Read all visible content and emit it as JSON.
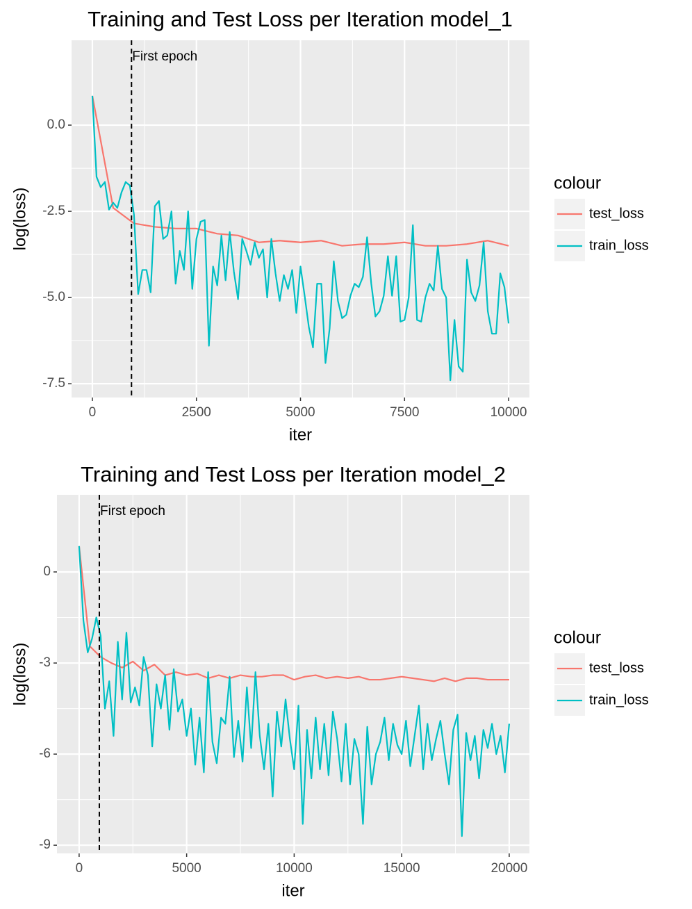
{
  "chart_data": [
    {
      "type": "line",
      "title": "Training and Test Loss per Iteration model_1",
      "x_label": "iter",
      "y_label": "log(loss)",
      "xlim": [
        -500,
        10500
      ],
      "ylim": [
        -7.9,
        2.46
      ],
      "xticks": [
        0,
        2500,
        5000,
        7500,
        10000
      ],
      "yticks": [
        -7.5,
        {
          "value": -5,
          "label": "-5.0"
        },
        -2.5,
        {
          "value": 0,
          "label": "0.0"
        }
      ],
      "grid": true,
      "minor_grid": true,
      "legend_title": "colour",
      "legend_position": "right",
      "annotation": {
        "x": 940,
        "text": "First epoch"
      },
      "series": [
        {
          "name": "test_loss",
          "color": "#F8766D",
          "x": [
            0,
            500,
            1000,
            1500,
            2000,
            2500,
            3000,
            3500,
            4000,
            4500,
            5000,
            5500,
            6000,
            6500,
            7000,
            7500,
            8000,
            8500,
            9000,
            9500,
            10000
          ],
          "values": [
            0.85,
            -2.4,
            -2.85,
            -2.95,
            -3.0,
            -3.0,
            -3.15,
            -3.2,
            -3.4,
            -3.35,
            -3.4,
            -3.35,
            -3.5,
            -3.45,
            -3.45,
            -3.4,
            -3.5,
            -3.5,
            -3.45,
            -3.35,
            -3.5
          ]
        },
        {
          "name": "train_loss",
          "color": "#00BFC4",
          "x": [
            0,
            100,
            200,
            300,
            400,
            500,
            600,
            700,
            800,
            900,
            1000,
            1100,
            1200,
            1300,
            1400,
            1500,
            1600,
            1700,
            1800,
            1900,
            2000,
            2100,
            2200,
            2300,
            2400,
            2500,
            2600,
            2700,
            2800,
            2900,
            3000,
            3100,
            3200,
            3300,
            3400,
            3500,
            3600,
            3700,
            3800,
            3900,
            4000,
            4100,
            4200,
            4300,
            4400,
            4500,
            4600,
            4700,
            4800,
            4900,
            5000,
            5100,
            5200,
            5300,
            5400,
            5500,
            5600,
            5700,
            5800,
            5900,
            6000,
            6100,
            6200,
            6300,
            6400,
            6500,
            6600,
            6700,
            6800,
            6900,
            7000,
            7100,
            7200,
            7300,
            7400,
            7500,
            7600,
            7700,
            7800,
            7900,
            8000,
            8100,
            8200,
            8300,
            8400,
            8500,
            8600,
            8700,
            8800,
            8900,
            9000,
            9100,
            9200,
            9300,
            9400,
            9500,
            9600,
            9700,
            9800,
            9900,
            10000
          ],
          "values": [
            0.85,
            -1.5,
            -1.8,
            -1.65,
            -2.45,
            -2.25,
            -2.4,
            -1.95,
            -1.65,
            -1.75,
            -2.6,
            -4.9,
            -4.2,
            -4.2,
            -4.85,
            -2.35,
            -2.2,
            -3.3,
            -3.2,
            -2.5,
            -4.6,
            -3.65,
            -4.2,
            -2.5,
            -4.75,
            -3.3,
            -2.8,
            -2.75,
            -6.4,
            -4.1,
            -4.65,
            -3.2,
            -4.5,
            -3.1,
            -4.25,
            -5.05,
            -3.3,
            -3.65,
            -4.05,
            -3.4,
            -3.85,
            -3.6,
            -5.0,
            -3.3,
            -4.3,
            -5.1,
            -4.35,
            -4.75,
            -4.2,
            -5.45,
            -4.1,
            -4.95,
            -5.85,
            -6.45,
            -4.6,
            -4.6,
            -6.9,
            -5.9,
            -3.95,
            -5.1,
            -5.6,
            -5.5,
            -4.95,
            -4.6,
            -4.7,
            -4.4,
            -3.25,
            -4.6,
            -5.55,
            -5.4,
            -4.95,
            -3.8,
            -4.95,
            -3.8,
            -5.7,
            -5.65,
            -5.0,
            -2.9,
            -5.65,
            -5.7,
            -5.0,
            -4.6,
            -4.8,
            -3.5,
            -4.75,
            -5.0,
            -7.4,
            -5.65,
            -7.0,
            -7.15,
            -3.9,
            -4.85,
            -5.1,
            -4.65,
            -3.4,
            -5.4,
            -6.05,
            -6.05,
            -4.3,
            -4.7,
            -5.75
          ]
        }
      ]
    },
    {
      "type": "line",
      "title": "Training and Test Loss per Iteration model_2",
      "x_label": "iter",
      "y_label": "log(loss)",
      "xlim": [
        -1030,
        20940
      ],
      "ylim": [
        -9.27,
        2.54
      ],
      "xticks": [
        0,
        5000,
        10000,
        15000,
        20000
      ],
      "yticks": [
        -9,
        -6,
        -3,
        0
      ],
      "grid": true,
      "minor_grid": true,
      "legend_title": "colour",
      "legend_position": "right",
      "annotation": {
        "x": 940,
        "text": "First epoch"
      },
      "series": [
        {
          "name": "test_loss",
          "color": "#F8766D",
          "x": [
            0,
            500,
            1000,
            1500,
            2000,
            2500,
            3000,
            3500,
            4000,
            4500,
            5000,
            5500,
            6000,
            6500,
            7000,
            7500,
            8000,
            8500,
            9000,
            9500,
            10000,
            10500,
            11000,
            11500,
            12000,
            12500,
            13000,
            13500,
            14000,
            14500,
            15000,
            15500,
            16000,
            16500,
            17000,
            17500,
            18000,
            18500,
            19000,
            19500,
            20000
          ],
          "values": [
            0.85,
            -2.45,
            -2.8,
            -3.0,
            -3.15,
            -2.95,
            -3.25,
            -3.05,
            -3.4,
            -3.3,
            -3.4,
            -3.35,
            -3.5,
            -3.4,
            -3.5,
            -3.4,
            -3.45,
            -3.45,
            -3.4,
            -3.4,
            -3.55,
            -3.45,
            -3.4,
            -3.5,
            -3.45,
            -3.5,
            -3.45,
            -3.55,
            -3.55,
            -3.5,
            -3.45,
            -3.5,
            -3.55,
            -3.6,
            -3.5,
            -3.6,
            -3.5,
            -3.5,
            -3.55,
            -3.55,
            -3.55
          ]
        },
        {
          "name": "train_loss",
          "color": "#00BFC4",
          "x": [
            0,
            200,
            400,
            600,
            800,
            1000,
            1200,
            1400,
            1600,
            1800,
            2000,
            2200,
            2400,
            2600,
            2800,
            3000,
            3200,
            3400,
            3600,
            3800,
            4000,
            4200,
            4400,
            4600,
            4800,
            5000,
            5200,
            5400,
            5600,
            5800,
            6000,
            6200,
            6400,
            6600,
            6800,
            7000,
            7200,
            7400,
            7600,
            7800,
            8000,
            8200,
            8400,
            8600,
            8800,
            9000,
            9200,
            9400,
            9600,
            9800,
            10000,
            10200,
            10400,
            10600,
            10800,
            11000,
            11200,
            11400,
            11600,
            11800,
            12000,
            12200,
            12400,
            12600,
            12800,
            13000,
            13200,
            13400,
            13600,
            13800,
            14000,
            14200,
            14400,
            14600,
            14800,
            15000,
            15200,
            15400,
            15600,
            15800,
            16000,
            16200,
            16400,
            16600,
            16800,
            17000,
            17200,
            17400,
            17600,
            17800,
            18000,
            18200,
            18400,
            18600,
            18800,
            19000,
            19200,
            19400,
            19600,
            19800,
            20000
          ],
          "values": [
            0.85,
            -1.6,
            -2.65,
            -2.2,
            -1.5,
            -2.1,
            -4.5,
            -3.6,
            -5.4,
            -2.3,
            -4.2,
            -2.0,
            -4.3,
            -3.8,
            -4.4,
            -2.8,
            -3.4,
            -5.75,
            -3.7,
            -4.5,
            -3.4,
            -5.2,
            -3.2,
            -4.6,
            -4.2,
            -5.4,
            -4.5,
            -6.35,
            -4.8,
            -6.6,
            -3.3,
            -5.6,
            -6.3,
            -4.8,
            -5.0,
            -3.45,
            -6.1,
            -4.9,
            -6.25,
            -3.8,
            -5.8,
            -3.3,
            -5.4,
            -6.5,
            -5.0,
            -7.4,
            -4.6,
            -5.75,
            -4.2,
            -5.5,
            -6.5,
            -4.4,
            -8.3,
            -5.2,
            -6.8,
            -4.8,
            -6.5,
            -5.0,
            -6.7,
            -4.6,
            -5.5,
            -6.9,
            -5.0,
            -7.0,
            -5.5,
            -6.0,
            -8.3,
            -5.1,
            -7.0,
            -6.0,
            -5.6,
            -4.8,
            -6.2,
            -5.0,
            -5.7,
            -6.0,
            -4.9,
            -6.4,
            -5.4,
            -4.4,
            -6.5,
            -5.0,
            -6.2,
            -5.5,
            -4.9,
            -6.0,
            -7.0,
            -5.2,
            -4.7,
            -8.7,
            -5.3,
            -6.2,
            -5.4,
            -6.8,
            -5.2,
            -5.8,
            -5.0,
            -6.0,
            -5.4,
            -6.6,
            -5.0
          ]
        }
      ]
    }
  ]
}
